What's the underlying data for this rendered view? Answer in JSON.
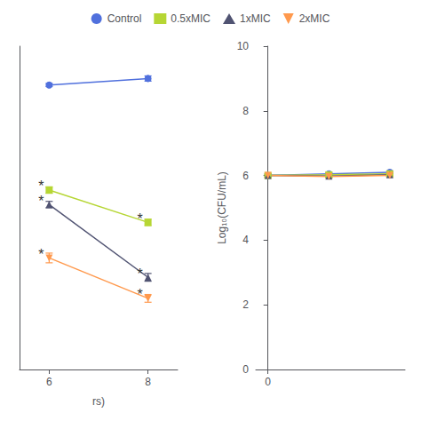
{
  "chart_data": [
    {
      "type": "line",
      "xlabel": "rs)",
      "x": [
        6,
        8
      ],
      "series": [
        {
          "name": "Control",
          "marker": "circle",
          "values": [
            8.8,
            9.0
          ],
          "errors": [
            0.05,
            0.08
          ]
        },
        {
          "name": "0.5xMIC",
          "marker": "square",
          "values": [
            5.55,
            4.55
          ],
          "errors": [
            0.1,
            0.1
          ]
        },
        {
          "name": "1xMIC",
          "marker": "triangle",
          "values": [
            5.1,
            2.85
          ],
          "errors": [
            0.1,
            0.12
          ]
        },
        {
          "name": "2xMIC",
          "marker": "triangle-down",
          "values": [
            3.45,
            2.2
          ],
          "errors": [
            0.15,
            0.12
          ]
        }
      ],
      "xlim": [
        5.4,
        8.6
      ],
      "xticks": [
        6,
        8
      ],
      "ylim": [
        0,
        10
      ],
      "tick_labels": "x",
      "grid": false,
      "legend": "top",
      "annotations": [
        {
          "text": "*",
          "x": 6,
          "y": 5.55
        },
        {
          "text": "*",
          "x": 6,
          "y": 5.1
        },
        {
          "text": "*",
          "x": 6,
          "y": 3.45
        },
        {
          "text": "*",
          "x": 8,
          "y": 4.55
        },
        {
          "text": "*",
          "x": 8,
          "y": 2.85
        },
        {
          "text": "*",
          "x": 8,
          "y": 2.2
        }
      ]
    },
    {
      "type": "line",
      "ylabel": "Log₁₀(CFU/mL)",
      "x": [
        0,
        2,
        4
      ],
      "series": [
        {
          "name": "Control",
          "marker": "circle",
          "values": [
            6.0,
            6.05,
            6.1
          ],
          "errors": [
            0.04,
            0.04,
            0.04
          ]
        },
        {
          "name": "0.5xMIC",
          "marker": "square",
          "values": [
            6.0,
            6.02,
            6.05
          ],
          "errors": [
            0.04,
            0.04,
            0.04
          ]
        },
        {
          "name": "1xMIC",
          "marker": "triangle",
          "values": [
            6.0,
            5.98,
            6.02
          ],
          "errors": [
            0.04,
            0.04,
            0.04
          ]
        },
        {
          "name": "2xMIC",
          "marker": "triangle-down",
          "values": [
            6.0,
            5.97,
            6.0
          ],
          "errors": [
            0.04,
            0.04,
            0.04
          ]
        }
      ],
      "xlim": [
        -0.4,
        4.5
      ],
      "xticks": [
        0
      ],
      "ylim": [
        0,
        10
      ],
      "yticks": [
        0,
        2,
        4,
        6,
        8,
        10
      ],
      "grid": false,
      "legend": "top"
    }
  ]
}
